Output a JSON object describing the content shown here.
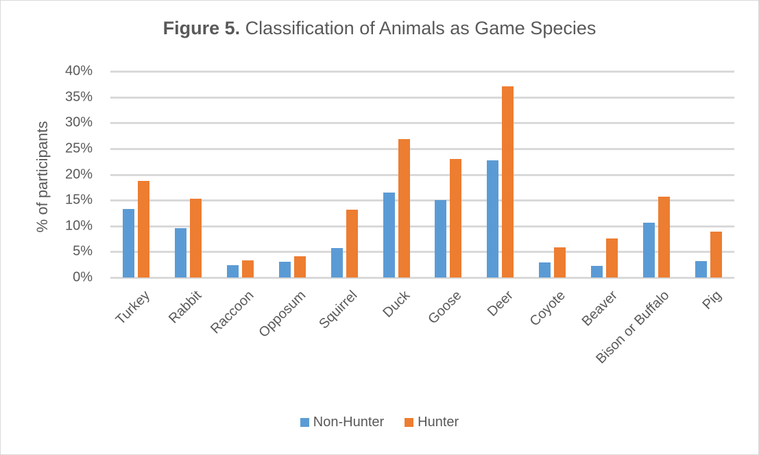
{
  "chart_data": {
    "type": "bar",
    "title_bold": "Figure 5.",
    "title_rest": " Classification of Animals as Game Species",
    "title": "Figure 5. Classification of Animals as Game Species",
    "xlabel": "",
    "ylabel": "% of participants",
    "ylim": [
      0,
      40
    ],
    "yticks": [
      "0%",
      "5%",
      "10%",
      "15%",
      "20%",
      "25%",
      "30%",
      "35%",
      "40%"
    ],
    "grid": true,
    "legend_position": "bottom",
    "categories": [
      "Turkey",
      "Rabbit",
      "Raccoon",
      "Opposum",
      "Squirrel",
      "Duck",
      "Goose",
      "Deer",
      "Coyote",
      "Beaver",
      "Bison or Buffalo",
      "Pig"
    ],
    "series": [
      {
        "name": "Non-Hunter",
        "color": "#5b9bd5",
        "values": [
          13.3,
          9.6,
          2.4,
          3.1,
          5.7,
          16.5,
          15.0,
          22.7,
          2.9,
          2.3,
          10.6,
          3.2
        ]
      },
      {
        "name": "Hunter",
        "color": "#ed7d31",
        "values": [
          18.7,
          15.3,
          3.3,
          4.1,
          13.2,
          26.8,
          23.0,
          37.1,
          5.8,
          7.6,
          15.7,
          8.9
        ]
      }
    ]
  }
}
